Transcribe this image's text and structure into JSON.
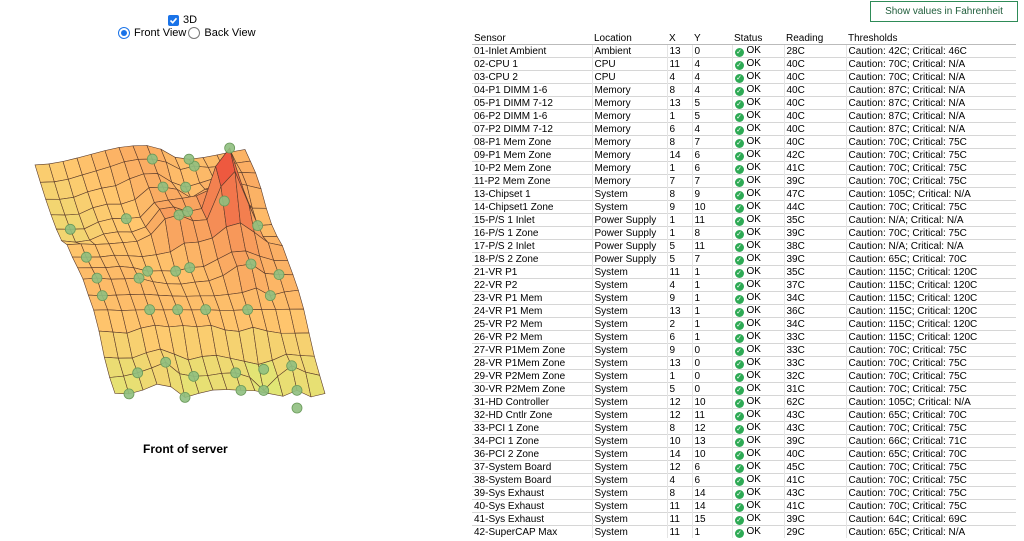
{
  "controls": {
    "checkbox_3d": "3D",
    "front_view": "Front View",
    "back_view": "Back View"
  },
  "chart_caption": "Front of server",
  "fahrenheit_button": "Show values in Fahrenheit",
  "table": {
    "headers": [
      "Sensor",
      "Location",
      "X",
      "Y",
      "Status",
      "Reading",
      "Thresholds"
    ],
    "rows": [
      [
        "01-Inlet Ambient",
        "Ambient",
        "13",
        "0",
        "OK",
        "28C",
        "Caution: 42C; Critical: 46C"
      ],
      [
        "02-CPU 1",
        "CPU",
        "11",
        "4",
        "OK",
        "40C",
        "Caution: 70C; Critical: N/A"
      ],
      [
        "03-CPU 2",
        "CPU",
        "4",
        "4",
        "OK",
        "40C",
        "Caution: 70C; Critical: N/A"
      ],
      [
        "04-P1 DIMM 1-6",
        "Memory",
        "8",
        "4",
        "OK",
        "40C",
        "Caution: 87C; Critical: N/A"
      ],
      [
        "05-P1 DIMM 7-12",
        "Memory",
        "13",
        "5",
        "OK",
        "40C",
        "Caution: 87C; Critical: N/A"
      ],
      [
        "06-P2 DIMM 1-6",
        "Memory",
        "1",
        "5",
        "OK",
        "40C",
        "Caution: 87C; Critical: N/A"
      ],
      [
        "07-P2 DIMM 7-12",
        "Memory",
        "6",
        "4",
        "OK",
        "40C",
        "Caution: 87C; Critical: N/A"
      ],
      [
        "08-P1 Mem Zone",
        "Memory",
        "8",
        "7",
        "OK",
        "40C",
        "Caution: 70C; Critical: 75C"
      ],
      [
        "09-P1 Mem Zone",
        "Memory",
        "14",
        "6",
        "OK",
        "42C",
        "Caution: 70C; Critical: 75C"
      ],
      [
        "10-P2 Mem Zone",
        "Memory",
        "1",
        "6",
        "OK",
        "41C",
        "Caution: 70C; Critical: 75C"
      ],
      [
        "11-P2 Mem Zone",
        "Memory",
        "7",
        "7",
        "OK",
        "39C",
        "Caution: 70C; Critical: 75C"
      ],
      [
        "13-Chipset 1",
        "System",
        "8",
        "9",
        "OK",
        "47C",
        "Caution: 105C; Critical: N/A"
      ],
      [
        "14-Chipset1 Zone",
        "System",
        "9",
        "10",
        "OK",
        "44C",
        "Caution: 70C; Critical: 75C"
      ],
      [
        "15-P/S 1 Inlet",
        "Power Supply",
        "1",
        "11",
        "OK",
        "35C",
        "Caution: N/A; Critical: N/A"
      ],
      [
        "16-P/S 1 Zone",
        "Power Supply",
        "1",
        "8",
        "OK",
        "39C",
        "Caution: 70C; Critical: 75C"
      ],
      [
        "17-P/S 2 Inlet",
        "Power Supply",
        "5",
        "11",
        "OK",
        "38C",
        "Caution: N/A; Critical: N/A"
      ],
      [
        "18-P/S 2 Zone",
        "Power Supply",
        "5",
        "7",
        "OK",
        "39C",
        "Caution: 65C; Critical: 70C"
      ],
      [
        "21-VR P1",
        "System",
        "11",
        "1",
        "OK",
        "35C",
        "Caution: 115C; Critical: 120C"
      ],
      [
        "22-VR P2",
        "System",
        "4",
        "1",
        "OK",
        "37C",
        "Caution: 115C; Critical: 120C"
      ],
      [
        "23-VR P1 Mem",
        "System",
        "9",
        "1",
        "OK",
        "34C",
        "Caution: 115C; Critical: 120C"
      ],
      [
        "24-VR P1 Mem",
        "System",
        "13",
        "1",
        "OK",
        "36C",
        "Caution: 115C; Critical: 120C"
      ],
      [
        "25-VR P2 Mem",
        "System",
        "2",
        "1",
        "OK",
        "34C",
        "Caution: 115C; Critical: 120C"
      ],
      [
        "26-VR P2 Mem",
        "System",
        "6",
        "1",
        "OK",
        "33C",
        "Caution: 115C; Critical: 120C"
      ],
      [
        "27-VR P1Mem Zone",
        "System",
        "9",
        "0",
        "OK",
        "33C",
        "Caution: 70C; Critical: 75C"
      ],
      [
        "28-VR P1Mem Zone",
        "System",
        "13",
        "0",
        "OK",
        "33C",
        "Caution: 70C; Critical: 75C"
      ],
      [
        "29-VR P2Mem Zone",
        "System",
        "1",
        "0",
        "OK",
        "32C",
        "Caution: 70C; Critical: 75C"
      ],
      [
        "30-VR P2Mem Zone",
        "System",
        "5",
        "0",
        "OK",
        "31C",
        "Caution: 70C; Critical: 75C"
      ],
      [
        "31-HD Controller",
        "System",
        "12",
        "10",
        "OK",
        "62C",
        "Caution: 105C; Critical: N/A"
      ],
      [
        "32-HD Cntlr Zone",
        "System",
        "12",
        "11",
        "OK",
        "43C",
        "Caution: 65C; Critical: 70C"
      ],
      [
        "33-PCI 1 Zone",
        "System",
        "8",
        "12",
        "OK",
        "43C",
        "Caution: 70C; Critical: 75C"
      ],
      [
        "34-PCI 1 Zone",
        "System",
        "10",
        "13",
        "OK",
        "39C",
        "Caution: 66C; Critical: 71C"
      ],
      [
        "36-PCI 2 Zone",
        "System",
        "14",
        "10",
        "OK",
        "40C",
        "Caution: 65C; Critical: 70C"
      ],
      [
        "37-System Board",
        "System",
        "12",
        "6",
        "OK",
        "45C",
        "Caution: 70C; Critical: 75C"
      ],
      [
        "38-System Board",
        "System",
        "4",
        "6",
        "OK",
        "41C",
        "Caution: 70C; Critical: 75C"
      ],
      [
        "39-Sys Exhaust",
        "System",
        "8",
        "14",
        "OK",
        "43C",
        "Caution: 70C; Critical: 75C"
      ],
      [
        "40-Sys Exhaust",
        "System",
        "11",
        "14",
        "OK",
        "41C",
        "Caution: 70C; Critical: 75C"
      ],
      [
        "41-Sys Exhaust",
        "System",
        "11",
        "15",
        "OK",
        "39C",
        "Caution: 64C; Critical: 69C"
      ],
      [
        "42-SuperCAP Max",
        "System",
        "11",
        "1",
        "OK",
        "29C",
        "Caution: 65C; Critical: N/A"
      ]
    ]
  },
  "colors": {
    "ok": "#2eaa55",
    "accent": "#1a73e8",
    "button_border": "#2e8b57"
  }
}
